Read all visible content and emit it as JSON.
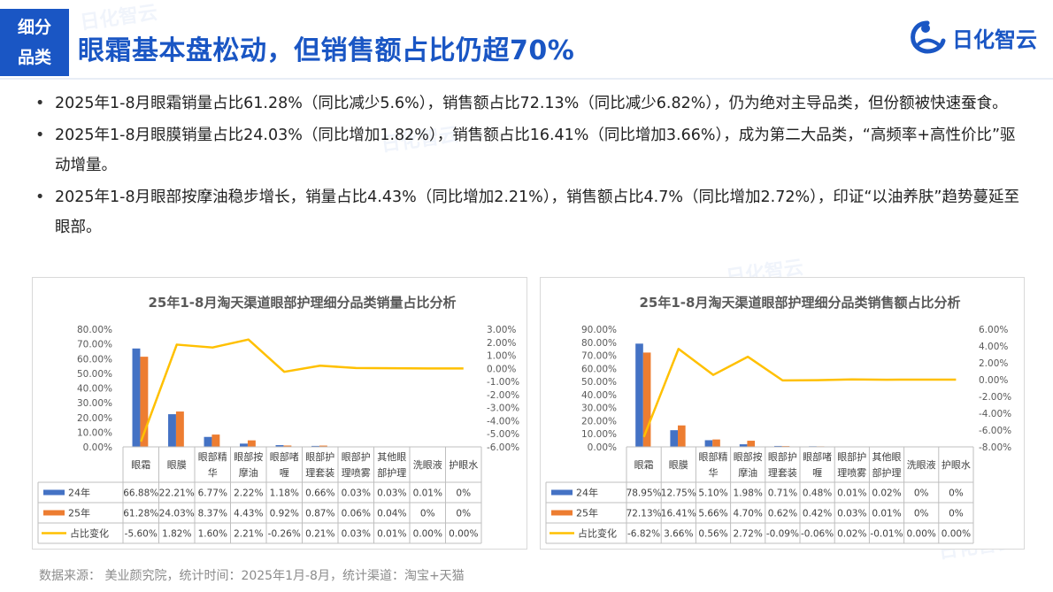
{
  "header": {
    "badge_line1": "细分",
    "badge_line2": "品类",
    "title": "眼霜基本盘松动，但销售额占比仍超70%",
    "logo_text": "日化智云"
  },
  "bullets": [
    "2025年1-8月眼霜销量占比61.28%（同比减少5.6%），销售额占比72.13%（同比减少6.82%），仍为绝对主导品类，但份额被快速蚕食。",
    "2025年1-8月眼膜销量占比24.03%（同比增加1.82%），销售额占比16.41%（同比增加3.66%），成为第二大品类，“高频率+高性价比”驱动增量。",
    "2025年1-8月眼部按摩油稳步增长，销量占比4.43%（同比增加2.21%），销售额占比4.7%（同比增加2.72%），印证“以油养肤”趋势蔓延至眼部。"
  ],
  "footer": "数据来源：  美业颜究院，统计时间：2025年1月-8月，统计渠道：淘宝+天猫",
  "colors": {
    "brand": "#1a56c4",
    "series24": "#4472c4",
    "series25": "#ed7d31",
    "change": "#ffc000"
  },
  "chart_data": [
    {
      "type": "bar",
      "title": "25年1-8月淘天渠道眼部护理细分品类销量占比分析",
      "categories": [
        "眼霜",
        "眼膜",
        "眼部精华",
        "眼部按摩油",
        "眼部啫喱",
        "眼部护理套装",
        "眼部护理喷雾",
        "其他眼部护理",
        "洗眼液",
        "护眼水"
      ],
      "category_lines": [
        [
          "眼霜"
        ],
        [
          "眼膜"
        ],
        [
          "眼部精",
          "华"
        ],
        [
          "眼部按",
          "摩油"
        ],
        [
          "眼部啫",
          "喱"
        ],
        [
          "眼部护",
          "理套装"
        ],
        [
          "眼部护",
          "理喷雾"
        ],
        [
          "其他眼",
          "部护理"
        ],
        [
          "洗眼液"
        ],
        [
          "护眼水"
        ]
      ],
      "series": [
        {
          "name": "24年",
          "kind": "bar",
          "values": [
            66.88,
            22.21,
            6.77,
            2.22,
            1.18,
            0.66,
            0.03,
            0.03,
            0.01,
            0
          ],
          "labels": [
            "66.88%",
            "22.21%",
            "6.77%",
            "2.22%",
            "1.18%",
            "0.66%",
            "0.03%",
            "0.03%",
            "0.01%",
            "0%"
          ]
        },
        {
          "name": "25年",
          "kind": "bar",
          "values": [
            61.28,
            24.03,
            8.37,
            4.43,
            0.92,
            0.87,
            0.06,
            0.04,
            0,
            0
          ],
          "labels": [
            "61.28%",
            "24.03%",
            "8.37%",
            "4.43%",
            "0.92%",
            "0.87%",
            "0.06%",
            "0.04%",
            "0%",
            "0%"
          ]
        },
        {
          "name": "占比变化",
          "kind": "line",
          "axis": "right",
          "values": [
            -5.6,
            1.82,
            1.6,
            2.21,
            -0.26,
            0.21,
            0.03,
            0.01,
            0,
            0
          ],
          "labels": [
            "-5.60%",
            "1.82%",
            "1.60%",
            "2.21%",
            "-0.26%",
            "0.21%",
            "0.03%",
            "0.01%",
            "0.00%",
            "0.00%"
          ]
        }
      ],
      "ylim": [
        0,
        80
      ],
      "yticks": [
        "80.00%",
        "70.00%",
        "60.00%",
        "50.00%",
        "40.00%",
        "30.00%",
        "20.00%",
        "10.00%",
        "0.00%"
      ],
      "y2lim": [
        -6,
        3
      ],
      "y2ticks": [
        "3.00%",
        "2.00%",
        "1.00%",
        "0.00%",
        "-1.00%",
        "-2.00%",
        "-3.00%",
        "-4.00%",
        "-5.00%",
        "-6.00%"
      ],
      "legend": "data-table"
    },
    {
      "type": "bar",
      "title": "25年1-8月淘天渠道眼部护理细分品类销售额占比分析",
      "categories": [
        "眼霜",
        "眼膜",
        "眼部精华",
        "眼部按摩油",
        "眼部护理套装",
        "眼部啫喱",
        "眼部护理喷雾",
        "其他眼部护理",
        "洗眼液",
        "护眼水"
      ],
      "category_lines": [
        [
          "眼霜"
        ],
        [
          "眼膜"
        ],
        [
          "眼部精",
          "华"
        ],
        [
          "眼部按",
          "摩油"
        ],
        [
          "眼部护",
          "理套装"
        ],
        [
          "眼部啫",
          "喱"
        ],
        [
          "眼部护",
          "理喷雾"
        ],
        [
          "其他眼",
          "部护理"
        ],
        [
          "洗眼液"
        ],
        [
          "护眼水"
        ]
      ],
      "series": [
        {
          "name": "24年",
          "kind": "bar",
          "values": [
            78.95,
            12.75,
            5.1,
            1.98,
            0.71,
            0.48,
            0.01,
            0.02,
            0,
            0
          ],
          "labels": [
            "78.95%",
            "12.75%",
            "5.10%",
            "1.98%",
            "0.71%",
            "0.48%",
            "0.01%",
            "0.02%",
            "0%",
            "0%"
          ]
        },
        {
          "name": "25年",
          "kind": "bar",
          "values": [
            72.13,
            16.41,
            5.66,
            4.7,
            0.62,
            0.42,
            0.03,
            0.01,
            0,
            0
          ],
          "labels": [
            "72.13%",
            "16.41%",
            "5.66%",
            "4.70%",
            "0.62%",
            "0.42%",
            "0.03%",
            "0.01%",
            "0%",
            "0%"
          ]
        },
        {
          "name": "占比变化",
          "kind": "line",
          "axis": "right",
          "values": [
            -6.82,
            3.66,
            0.56,
            2.72,
            -0.09,
            -0.06,
            0.02,
            -0.01,
            0,
            0
          ],
          "labels": [
            "-6.82%",
            "3.66%",
            "0.56%",
            "2.72%",
            "-0.09%",
            "-0.06%",
            "0.02%",
            "-0.01%",
            "0.00%",
            "0.00%"
          ]
        }
      ],
      "ylim": [
        0,
        90
      ],
      "yticks": [
        "90.00%",
        "80.00%",
        "70.00%",
        "60.00%",
        "50.00%",
        "40.00%",
        "30.00%",
        "20.00%",
        "10.00%",
        "0.00%"
      ],
      "y2lim": [
        -8,
        6
      ],
      "y2ticks": [
        "6.00%",
        "4.00%",
        "2.00%",
        "0.00%",
        "-2.00%",
        "-4.00%",
        "-6.00%",
        "-8.00%"
      ],
      "legend": "data-table"
    }
  ]
}
